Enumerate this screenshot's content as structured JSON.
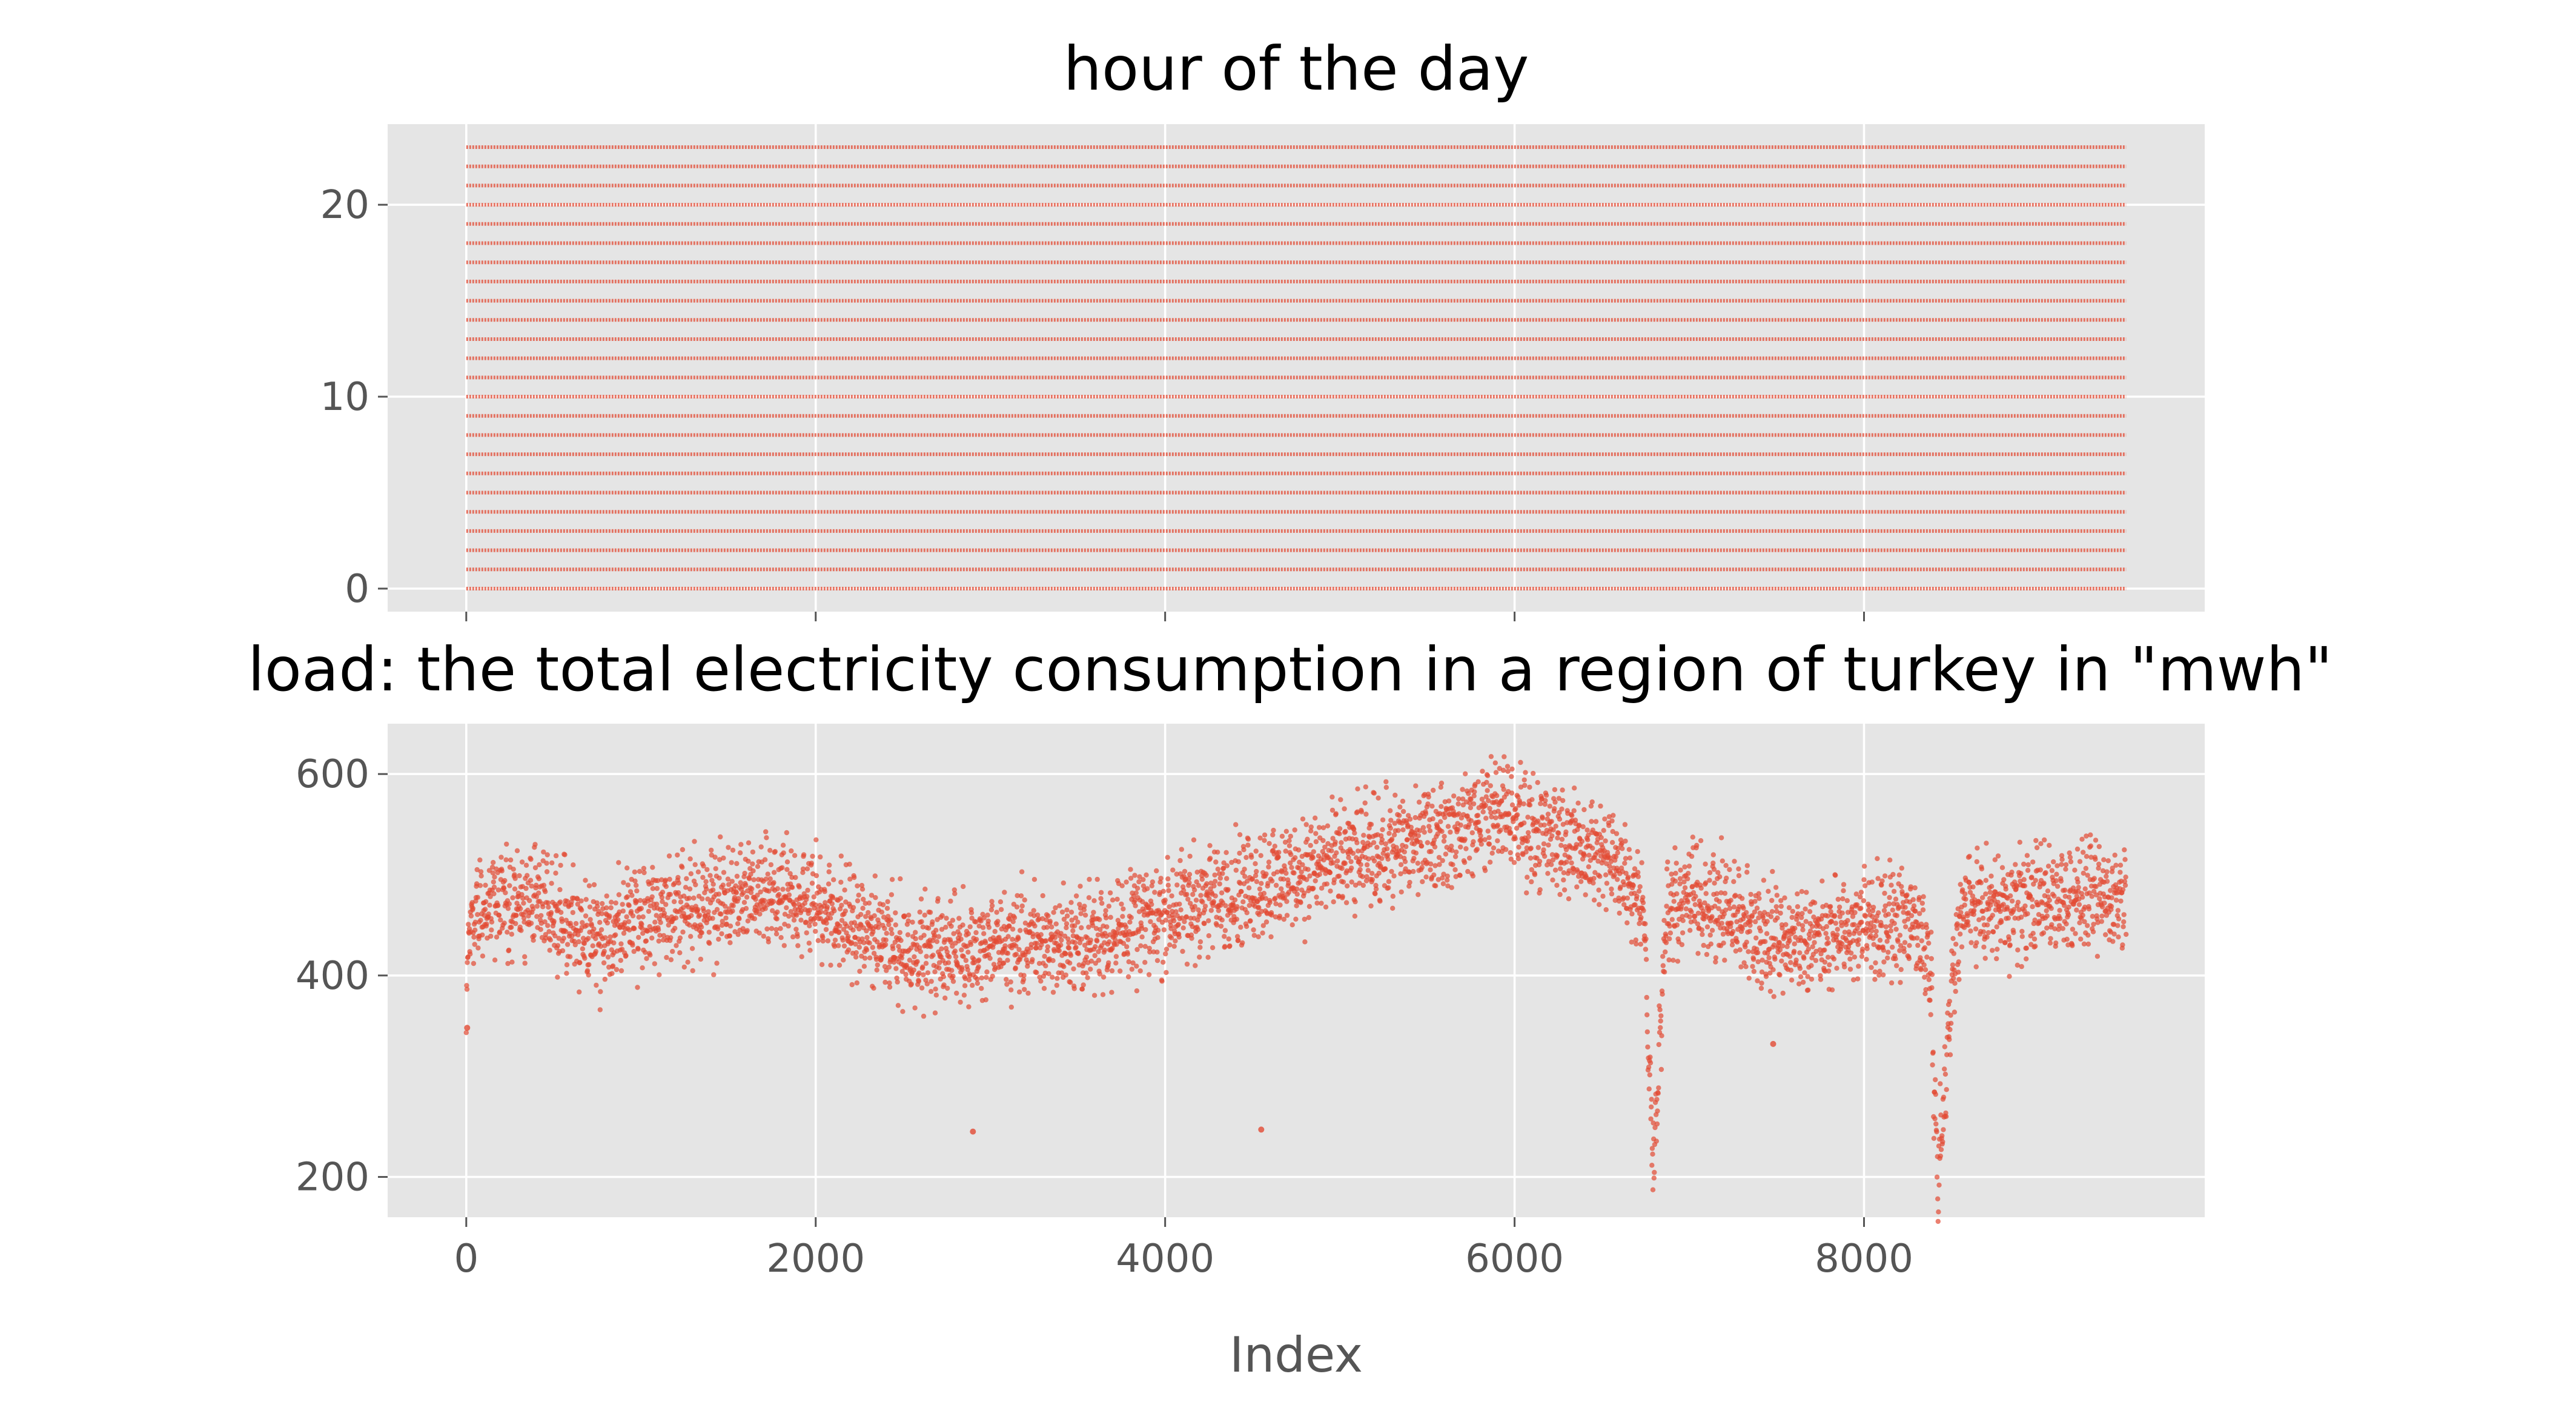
{
  "colors": {
    "panel_bg": "#E5E5E5",
    "grid": "#FFFFFF",
    "marker": "#E24A33",
    "text": "#555555"
  },
  "chart_data": [
    {
      "type": "scatter",
      "title": "hour of the day",
      "xlabel": "",
      "ylabel": "",
      "xlim": [
        -450,
        9950
      ],
      "ylim": [
        -1.2,
        24.2
      ],
      "xticks": [
        0,
        2000,
        4000,
        6000,
        8000
      ],
      "xtick_labels_visible": false,
      "yticks": [
        0,
        10,
        20
      ],
      "ytick_labels": [
        "0",
        "10",
        "20"
      ],
      "grid": true,
      "series": [
        {
          "pattern": "hour = index mod 24",
          "x_range": [
            0,
            9500
          ],
          "y_values": [
            0,
            1,
            2,
            3,
            4,
            5,
            6,
            7,
            8,
            9,
            10,
            11,
            12,
            13,
            14,
            15,
            16,
            17,
            18,
            19,
            20,
            21,
            22,
            23
          ]
        }
      ]
    },
    {
      "type": "scatter",
      "title": "load: the total electricity consumption in a region of turkey in \"mwh\"",
      "xlabel": "Index",
      "ylabel": "",
      "xlim": [
        -450,
        9950
      ],
      "ylim": [
        160,
        650
      ],
      "xticks": [
        0,
        2000,
        4000,
        6000,
        8000
      ],
      "xtick_labels": [
        "0",
        "2000",
        "4000",
        "6000",
        "8000"
      ],
      "yticks": [
        200,
        400,
        600
      ],
      "ytick_labels": [
        "200",
        "400",
        "600"
      ],
      "grid": true,
      "series": [
        {
          "trend_x": [
            0,
            20,
            200,
            500,
            650,
            800,
            1000,
            1400,
            1700,
            2000,
            2200,
            2500,
            2800,
            3100,
            3500,
            3900,
            4300,
            4700,
            5000,
            5400,
            5700,
            5900,
            6100,
            6400,
            6600,
            6740,
            6770,
            6800,
            6830,
            6870,
            7000,
            7200,
            7400,
            7700,
            8000,
            8300,
            8380,
            8420,
            8450,
            8500,
            8560,
            8700,
            9000,
            9200,
            9500
          ],
          "trend_y": [
            360,
            455,
            475,
            468,
            440,
            440,
            460,
            470,
            478,
            472,
            450,
            425,
            425,
            432,
            432,
            455,
            478,
            498,
            515,
            530,
            548,
            565,
            545,
            525,
            510,
            470,
            300,
            225,
            330,
            460,
            480,
            465,
            440,
            435,
            450,
            455,
            400,
            200,
            250,
            380,
            470,
            465,
            475,
            478,
            478
          ],
          "spread": 45,
          "outliers": [
            [
              2900,
              245
            ],
            [
              4550,
              247
            ],
            [
              7480,
              332
            ],
            [
              5,
              348
            ]
          ]
        }
      ]
    }
  ]
}
